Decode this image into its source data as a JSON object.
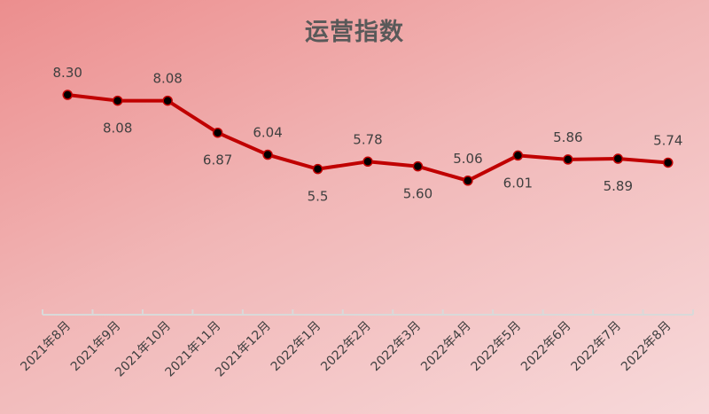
{
  "chart_data": {
    "type": "line",
    "title": "运营指数",
    "xlabel": "",
    "ylabel": "",
    "ylim": [
      0,
      10
    ],
    "grid": false,
    "categories": [
      "2021年8月",
      "2021年9月",
      "2021年10月",
      "2021年11月",
      "2021年12月",
      "2022年1月",
      "2022年2月",
      "2022年3月",
      "2022年4月",
      "2022年5月",
      "2022年6月",
      "2022年7月",
      "2022年8月"
    ],
    "series": [
      {
        "name": "运营指数",
        "values": [
          8.3,
          8.08,
          8.08,
          6.87,
          6.04,
          5.5,
          5.78,
          5.6,
          5.06,
          6.01,
          5.86,
          5.89,
          5.74
        ]
      }
    ],
    "data_labels": [
      "8.30",
      "8.08",
      "8.08",
      "6.87",
      "6.04",
      "5.5",
      "5.78",
      "5.60",
      "5.06",
      "6.01",
      "5.86",
      "5.89",
      "5.74"
    ],
    "line_color": "#c00000",
    "marker_color": "#000000"
  }
}
